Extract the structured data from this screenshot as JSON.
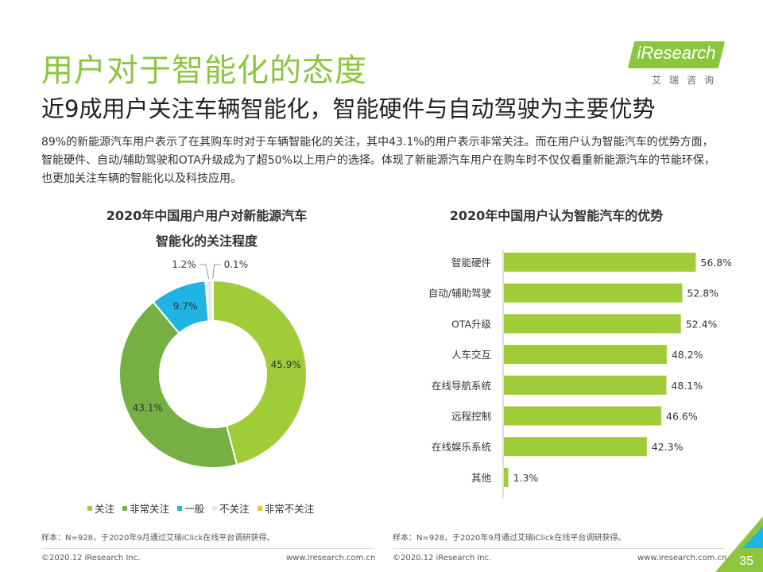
{
  "header": {
    "title": "用户对于智能化的态度",
    "subtitle": "近9成用户关注车辆智能化，智能硬件与自动驾驶为主要优势",
    "intro": "89%的新能源汽车用户表示了在其购车时对于车辆智能化的关注，其中43.1%的用户表示非常关注。而在用户认为智能汽车的优势方面，智能硬件、自动/辅助驾驶和OTA升级成为了超50%以上用户的选择。体现了新能源汽车用户在购车时不仅仅看重新能源汽车的节能环保，也更加关注车辆的智能化以及科技应用。"
  },
  "logo": {
    "text": "iResearch",
    "cn": "艾瑞咨询",
    "color": "#8cc63f"
  },
  "colors": {
    "accent": "#8cc63f",
    "bar": "#a0cc3a"
  },
  "chart_data": [
    {
      "type": "pie",
      "variant": "donut",
      "title_line1": "2020年中国用户用户对新能源汽车",
      "title_line2": "智能化的关注程度",
      "categories": [
        "关注",
        "非常关注",
        "一般",
        "不关注",
        "非常不关注"
      ],
      "values": [
        45.9,
        43.1,
        9.7,
        1.2,
        0.1
      ],
      "labels": [
        "45.9%",
        "43.1%",
        "9.7%",
        "1.2%",
        "0.1%"
      ],
      "colors": [
        "#a0cc3a",
        "#76b043",
        "#1fb4e3",
        "#e9e9e9",
        "#f5c31b"
      ],
      "legend_position": "bottom"
    },
    {
      "type": "bar",
      "orientation": "horizontal",
      "title": "2020年中国用户认为智能汽车的优势",
      "categories": [
        "智能硬件",
        "自动/辅助驾驶",
        "OTA升级",
        "人车交互",
        "在线导航系统",
        "远程控制",
        "在线娱乐系统",
        "其他"
      ],
      "values": [
        56.8,
        52.8,
        52.4,
        48.2,
        48.1,
        46.6,
        42.3,
        1.3
      ],
      "labels": [
        "56.8%",
        "52.8%",
        "52.4%",
        "48.2%",
        "48.1%",
        "46.6%",
        "42.3%",
        "1.3%"
      ],
      "xlim": [
        0,
        60
      ],
      "color": "#a0cc3a"
    }
  ],
  "notes": {
    "left": "样本：N=928，于2020年9月通过艾瑞iClick在线平台调研获得。",
    "right": "样本：N=928，于2020年9月通过艾瑞iClick在线平台调研获得。"
  },
  "footer": {
    "copyright_left": "©2020.12 iResearch Inc.",
    "url_left": "www.iresearch.com.cn",
    "copyright_right": "©2020.12 iResearch Inc.",
    "url_right": "www.iresearch.com.cn",
    "page_number": "35"
  }
}
